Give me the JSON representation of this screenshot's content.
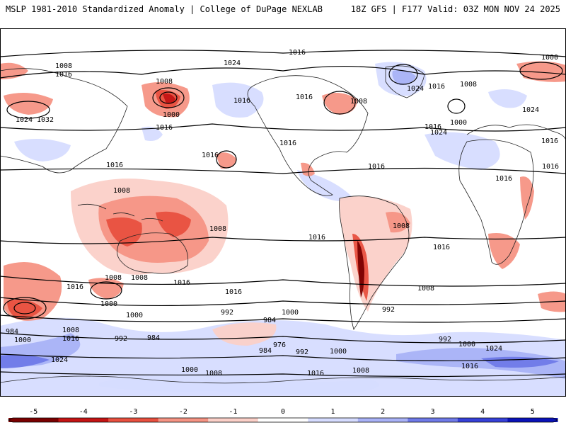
{
  "header": {
    "title_left": "MSLP 1981-2010 Standardized Anomaly | College of DuPage NEXLAB",
    "title_right": "18Z GFS | F177 Valid: 03Z MON NOV 24 2025"
  },
  "colors": {
    "neg5": "#7a0000",
    "neg4": "#c41414",
    "neg3": "#e8503f",
    "neg2": "#f59484",
    "neg1": "#fbd0c8",
    "pos1": "#d6dcff",
    "pos2": "#a9b2f7",
    "pos3": "#6f7ae8",
    "pos4": "#3640d8",
    "pos5": "#0a12b8"
  },
  "colorbar": {
    "ticks": [
      "-5",
      "-4",
      "-3",
      "-2",
      "-1",
      "0",
      "1",
      "2",
      "3",
      "4",
      "5"
    ]
  },
  "isobar_labels": [
    "1016",
    "1024",
    "1000",
    "1008",
    "1016",
    "1024",
    "1032",
    "1008",
    "1000",
    "1016",
    "1016",
    "1016",
    "1016",
    "1008",
    "1016",
    "1016",
    "1024",
    "1016",
    "1000",
    "1008",
    "1024",
    "1016",
    "1016",
    "1016",
    "1008",
    "1016",
    "1008",
    "1016",
    "1008",
    "1016",
    "1008",
    "1000",
    "1016",
    "1016",
    "1008",
    "1016",
    "1000",
    "992",
    "1000",
    "992",
    "1008",
    "984",
    "984",
    "1000",
    "1008",
    "1016",
    "992",
    "984",
    "976",
    "984",
    "992",
    "1000",
    "992",
    "1000",
    "1024",
    "1016",
    "1024",
    "1000",
    "1008",
    "1016",
    "1008",
    "1016",
    "1024"
  ]
}
